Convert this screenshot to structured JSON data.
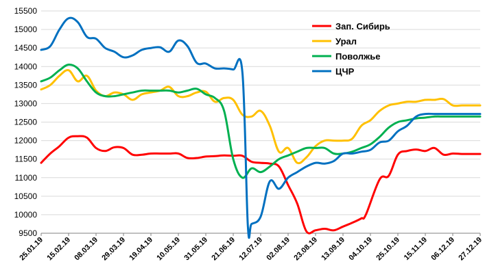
{
  "chart_data": {
    "type": "line",
    "title": "",
    "xlabel": "",
    "ylabel": "",
    "ylim": [
      9500,
      15500
    ],
    "yticks": [
      9500,
      10000,
      10500,
      11000,
      11500,
      12000,
      12500,
      13000,
      13500,
      14000,
      14500,
      15000,
      15500
    ],
    "grid": "horizontal",
    "legend_position": "top-right",
    "x_tick_labels": [
      "25.01.19",
      "15.02.19",
      "08.03.19",
      "29.03.19",
      "19.04.19",
      "10.05.19",
      "31.05.19",
      "21.06.19",
      "12.07.19",
      "02.08.19",
      "23.08.19",
      "13.09.19",
      "04.10.19",
      "25.10.19",
      "15.11.19",
      "06.12.19",
      "27.12.19"
    ],
    "x_range": [
      0,
      48
    ],
    "series": [
      {
        "name": "Зап. Сибирь",
        "color": "#ff0000",
        "points": [
          [
            0,
            11400
          ],
          [
            1,
            11650
          ],
          [
            2,
            11850
          ],
          [
            3,
            12080
          ],
          [
            4,
            12120
          ],
          [
            5,
            12080
          ],
          [
            6,
            11800
          ],
          [
            7,
            11720
          ],
          [
            8,
            11820
          ],
          [
            9,
            11800
          ],
          [
            10,
            11620
          ],
          [
            11,
            11620
          ],
          [
            12,
            11650
          ],
          [
            13,
            11650
          ],
          [
            14,
            11650
          ],
          [
            15,
            11650
          ],
          [
            16,
            11530
          ],
          [
            17,
            11530
          ],
          [
            18,
            11570
          ],
          [
            19,
            11580
          ],
          [
            20,
            11600
          ],
          [
            21,
            11590
          ],
          [
            22,
            11590
          ],
          [
            23,
            11430
          ],
          [
            24,
            11400
          ],
          [
            25,
            11380
          ],
          [
            26,
            11300
          ],
          [
            27,
            10800
          ],
          [
            28,
            10300
          ],
          [
            29,
            9550
          ],
          [
            30,
            9580
          ],
          [
            31,
            9620
          ],
          [
            32,
            9580
          ],
          [
            33,
            9680
          ],
          [
            34,
            9780
          ],
          [
            35,
            9900
          ],
          [
            35.5,
            10000
          ],
          [
            37,
            10950
          ],
          [
            38,
            11050
          ],
          [
            39,
            11620
          ],
          [
            40,
            11720
          ],
          [
            41,
            11760
          ],
          [
            42,
            11720
          ],
          [
            43,
            11800
          ],
          [
            44,
            11620
          ],
          [
            45,
            11650
          ],
          [
            46,
            11640
          ],
          [
            47,
            11640
          ],
          [
            48,
            11640
          ]
        ]
      },
      {
        "name": "Урал",
        "color": "#ffc000",
        "points": [
          [
            0,
            13380
          ],
          [
            1,
            13500
          ],
          [
            2,
            13750
          ],
          [
            3,
            13900
          ],
          [
            4,
            13600
          ],
          [
            5,
            13750
          ],
          [
            6,
            13350
          ],
          [
            7,
            13200
          ],
          [
            8,
            13300
          ],
          [
            9,
            13250
          ],
          [
            10,
            13100
          ],
          [
            11,
            13250
          ],
          [
            12,
            13300
          ],
          [
            13,
            13350
          ],
          [
            14,
            13450
          ],
          [
            15,
            13200
          ],
          [
            16,
            13200
          ],
          [
            17,
            13300
          ],
          [
            18,
            13320
          ],
          [
            19,
            13050
          ],
          [
            20,
            13150
          ],
          [
            21,
            13100
          ],
          [
            22,
            12700
          ],
          [
            23,
            12650
          ],
          [
            24,
            12800
          ],
          [
            25,
            12400
          ],
          [
            26,
            11700
          ],
          [
            27,
            11800
          ],
          [
            28,
            11400
          ],
          [
            29,
            11550
          ],
          [
            30,
            11850
          ],
          [
            31,
            12000
          ],
          [
            32,
            12000
          ],
          [
            33,
            12000
          ],
          [
            34,
            12050
          ],
          [
            35,
            12400
          ],
          [
            36,
            12550
          ],
          [
            37,
            12800
          ],
          [
            38,
            12950
          ],
          [
            39,
            13000
          ],
          [
            40,
            13050
          ],
          [
            41,
            13050
          ],
          [
            42,
            13100
          ],
          [
            43,
            13100
          ],
          [
            44,
            13120
          ],
          [
            45,
            12950
          ],
          [
            46,
            12950
          ],
          [
            47,
            12950
          ],
          [
            48,
            12950
          ]
        ]
      },
      {
        "name": "Поволжье",
        "color": "#00b050",
        "points": [
          [
            0,
            13600
          ],
          [
            1,
            13700
          ],
          [
            2,
            13900
          ],
          [
            3,
            14050
          ],
          [
            4,
            13950
          ],
          [
            5,
            13600
          ],
          [
            6,
            13300
          ],
          [
            7,
            13200
          ],
          [
            8,
            13200
          ],
          [
            9,
            13250
          ],
          [
            10,
            13300
          ],
          [
            11,
            13350
          ],
          [
            12,
            13350
          ],
          [
            13,
            13350
          ],
          [
            14,
            13350
          ],
          [
            15,
            13300
          ],
          [
            16,
            13350
          ],
          [
            17,
            13400
          ],
          [
            18,
            13250
          ],
          [
            19,
            13150
          ],
          [
            20,
            12800
          ],
          [
            21,
            11500
          ],
          [
            22,
            11000
          ],
          [
            23,
            11250
          ],
          [
            24,
            11150
          ],
          [
            25,
            11300
          ],
          [
            26,
            11500
          ],
          [
            27,
            11600
          ],
          [
            28,
            11700
          ],
          [
            29,
            11800
          ],
          [
            30,
            11800
          ],
          [
            31,
            11800
          ],
          [
            32,
            11650
          ],
          [
            33,
            11650
          ],
          [
            34,
            11700
          ],
          [
            35,
            11800
          ],
          [
            36,
            11900
          ],
          [
            37,
            12100
          ],
          [
            38,
            12350
          ],
          [
            39,
            12500
          ],
          [
            40,
            12550
          ],
          [
            41,
            12600
          ],
          [
            42,
            12620
          ],
          [
            43,
            12650
          ],
          [
            44,
            12650
          ],
          [
            45,
            12650
          ],
          [
            46,
            12650
          ],
          [
            47,
            12650
          ],
          [
            48,
            12650
          ]
        ]
      },
      {
        "name": "ЦЧР",
        "color": "#0070c0",
        "points": [
          [
            0,
            14450
          ],
          [
            1,
            14550
          ],
          [
            2,
            15000
          ],
          [
            3,
            15300
          ],
          [
            4,
            15200
          ],
          [
            5,
            14800
          ],
          [
            6,
            14750
          ],
          [
            7,
            14500
          ],
          [
            8,
            14400
          ],
          [
            9,
            14250
          ],
          [
            10,
            14300
          ],
          [
            11,
            14450
          ],
          [
            12,
            14500
          ],
          [
            13,
            14520
          ],
          [
            14,
            14400
          ],
          [
            15,
            14700
          ],
          [
            16,
            14550
          ],
          [
            17,
            14100
          ],
          [
            18,
            14080
          ],
          [
            19,
            13950
          ],
          [
            20,
            13950
          ],
          [
            21,
            13920
          ],
          [
            22,
            13850
          ],
          [
            22.6,
            9700
          ],
          [
            23,
            9750
          ],
          [
            24,
            9950
          ],
          [
            25,
            10900
          ],
          [
            26,
            10700
          ],
          [
            27,
            11000
          ],
          [
            28,
            11150
          ],
          [
            29,
            11300
          ],
          [
            30,
            11400
          ],
          [
            31,
            11380
          ],
          [
            32,
            11450
          ],
          [
            33,
            11650
          ],
          [
            34,
            11650
          ],
          [
            35,
            11700
          ],
          [
            36,
            11750
          ],
          [
            37,
            11950
          ],
          [
            38,
            12000
          ],
          [
            39,
            12250
          ],
          [
            40,
            12400
          ],
          [
            41,
            12650
          ],
          [
            42,
            12720
          ],
          [
            43,
            12720
          ],
          [
            44,
            12720
          ],
          [
            45,
            12720
          ],
          [
            46,
            12720
          ],
          [
            47,
            12720
          ],
          [
            48,
            12720
          ]
        ]
      }
    ]
  }
}
